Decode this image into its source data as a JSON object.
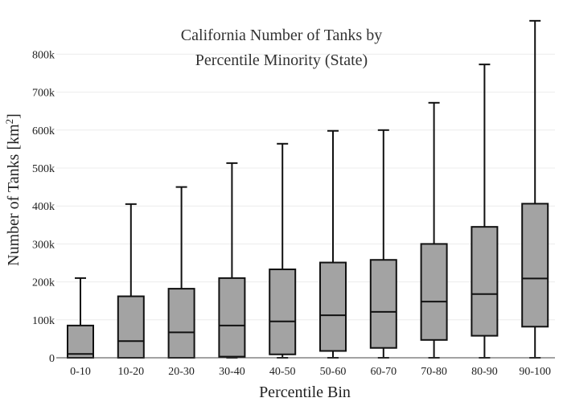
{
  "chart_data": {
    "type": "box",
    "title_lines": [
      "California Number of Tanks by",
      "Percentile Minority (State)"
    ],
    "xlabel": "Percentile Bin",
    "ylabel_main": "Number of Tanks  [km",
    "ylabel_sup": "2",
    "ylabel_end": "]",
    "ylim": [
      0,
      900000
    ],
    "yticks": [
      0,
      100000,
      200000,
      300000,
      400000,
      500000,
      600000,
      700000,
      800000
    ],
    "ytick_labels": [
      "0",
      "100k",
      "200k",
      "300k",
      "400k",
      "500k",
      "600k",
      "700k",
      "800k"
    ],
    "grid": true,
    "categories": [
      "0-10",
      "10-20",
      "20-30",
      "30-40",
      "40-50",
      "50-60",
      "60-70",
      "70-80",
      "80-90",
      "90-100"
    ],
    "boxes": [
      {
        "min": 0,
        "q1": 0,
        "median": 10000,
        "q3": 85000,
        "max": 210000
      },
      {
        "min": 0,
        "q1": 0,
        "median": 44000,
        "q3": 162000,
        "max": 405000
      },
      {
        "min": 0,
        "q1": 0,
        "median": 67000,
        "q3": 182000,
        "max": 450000
      },
      {
        "min": 0,
        "q1": 3000,
        "median": 85000,
        "q3": 210000,
        "max": 513000
      },
      {
        "min": 0,
        "q1": 9000,
        "median": 96000,
        "q3": 233000,
        "max": 564000
      },
      {
        "min": 0,
        "q1": 18000,
        "median": 112000,
        "q3": 251000,
        "max": 598000
      },
      {
        "min": 0,
        "q1": 26000,
        "median": 121000,
        "q3": 258000,
        "max": 600000
      },
      {
        "min": 0,
        "q1": 47000,
        "median": 148000,
        "q3": 300000,
        "max": 672000
      },
      {
        "min": 0,
        "q1": 58000,
        "median": 168000,
        "q3": 345000,
        "max": 773000
      },
      {
        "min": 0,
        "q1": 82000,
        "median": 209000,
        "q3": 406000,
        "max": 888000
      }
    ],
    "colors": {
      "box_fill": "#a3a3a3",
      "stroke": "#111111",
      "grid": "#ececec"
    }
  }
}
